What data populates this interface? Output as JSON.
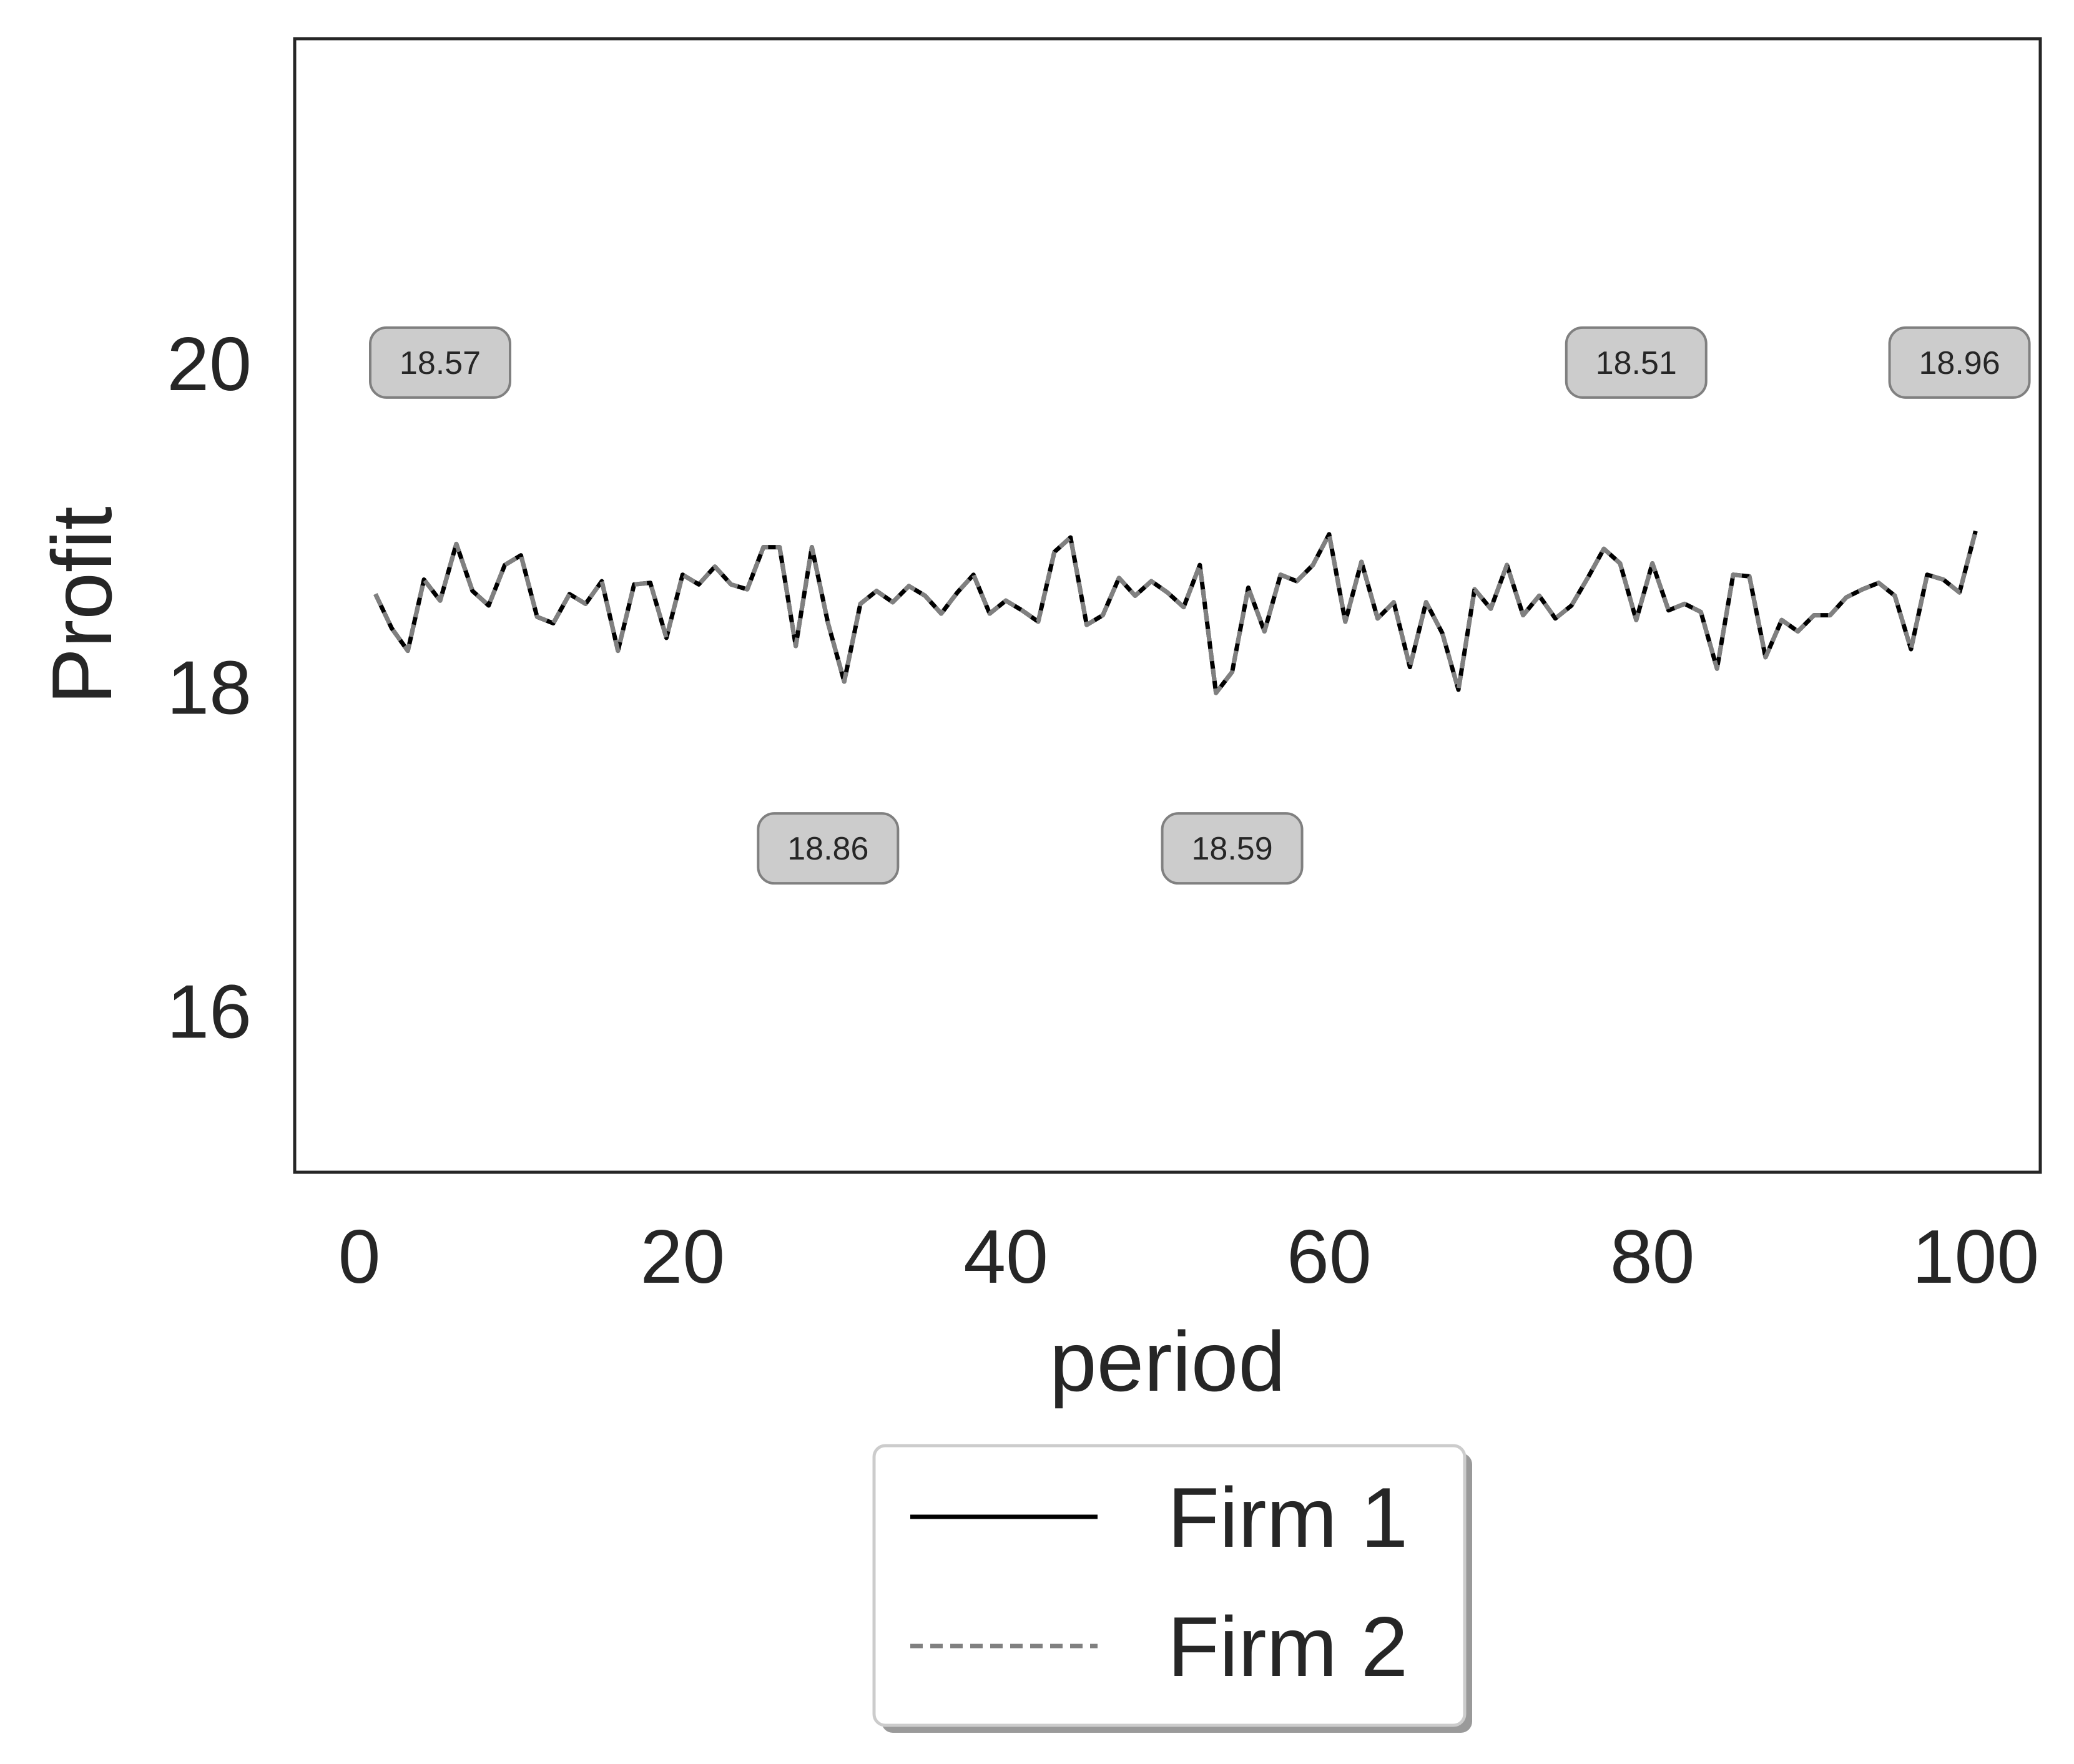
{
  "chart_data": {
    "type": "line",
    "xlabel": "period",
    "ylabel": "Profit",
    "xlim": [
      -4,
      104
    ],
    "ylim": [
      15,
      22
    ],
    "xticks": [
      0,
      20,
      40,
      60,
      80,
      100
    ],
    "yticks": [
      16,
      18,
      20
    ],
    "grid": false,
    "legend_position": "bottom-center",
    "series": [
      {
        "name": "Firm 1",
        "color": "#000000",
        "style": "solid",
        "x": [
          1,
          2,
          3,
          4,
          5,
          6,
          7,
          8,
          9,
          10,
          11,
          12,
          13,
          14,
          15,
          16,
          17,
          18,
          19,
          20,
          21,
          22,
          23,
          24,
          25,
          26,
          27,
          28,
          29,
          30,
          31,
          32,
          33,
          34,
          35,
          36,
          37,
          38,
          39,
          40,
          41,
          42,
          43,
          44,
          45,
          46,
          47,
          48,
          49,
          50,
          51,
          52,
          53,
          54,
          55,
          56,
          57,
          58,
          59,
          60,
          61,
          62,
          63,
          64,
          65,
          66,
          67,
          68,
          69,
          70,
          71,
          72,
          73,
          74,
          75,
          76,
          77,
          78,
          79,
          80,
          81,
          82,
          83,
          84,
          85,
          86,
          87,
          88,
          89,
          90,
          91,
          92,
          93,
          94,
          95,
          96,
          97,
          98,
          99,
          100
        ],
        "values": [
          18.57,
          18.36,
          18.22,
          18.66,
          18.53,
          18.88,
          18.59,
          18.5,
          18.75,
          18.81,
          18.43,
          18.39,
          18.57,
          18.51,
          18.65,
          18.22,
          18.63,
          18.64,
          18.3,
          18.69,
          18.63,
          18.74,
          18.63,
          18.6,
          18.86,
          18.86,
          18.25,
          18.86,
          18.39,
          18.03,
          18.51,
          18.59,
          18.52,
          18.62,
          18.56,
          18.45,
          18.58,
          18.69,
          18.45,
          18.53,
          18.47,
          18.4,
          18.83,
          18.92,
          18.38,
          18.44,
          18.67,
          18.56,
          18.65,
          18.58,
          18.49,
          18.75,
          17.96,
          18.09,
          18.61,
          18.34,
          18.69,
          18.65,
          18.75,
          18.94,
          18.4,
          18.77,
          18.42,
          18.52,
          18.12,
          18.52,
          18.33,
          17.98,
          18.6,
          18.48,
          18.75,
          18.44,
          18.56,
          18.42,
          18.5,
          18.67,
          18.85,
          18.76,
          18.41,
          18.76,
          18.47,
          18.51,
          18.46,
          18.11,
          18.69,
          18.68,
          18.18,
          18.41,
          18.34,
          18.44,
          18.44,
          18.55,
          18.6,
          18.64,
          18.56,
          18.23,
          18.69,
          18.66,
          18.58,
          18.96
        ]
      },
      {
        "name": "Firm 2",
        "color": "#808080",
        "style": "dashed",
        "x": [
          1,
          2,
          3,
          4,
          5,
          6,
          7,
          8,
          9,
          10,
          11,
          12,
          13,
          14,
          15,
          16,
          17,
          18,
          19,
          20,
          21,
          22,
          23,
          24,
          25,
          26,
          27,
          28,
          29,
          30,
          31,
          32,
          33,
          34,
          35,
          36,
          37,
          38,
          39,
          40,
          41,
          42,
          43,
          44,
          45,
          46,
          47,
          48,
          49,
          50,
          51,
          52,
          53,
          54,
          55,
          56,
          57,
          58,
          59,
          60,
          61,
          62,
          63,
          64,
          65,
          66,
          67,
          68,
          69,
          70,
          71,
          72,
          73,
          74,
          75,
          76,
          77,
          78,
          79,
          80,
          81,
          82,
          83,
          84,
          85,
          86,
          87,
          88,
          89,
          90,
          91,
          92,
          93,
          94,
          95,
          96,
          97,
          98,
          99,
          100
        ],
        "values": [
          18.57,
          18.36,
          18.22,
          18.66,
          18.53,
          18.88,
          18.59,
          18.5,
          18.75,
          18.81,
          18.43,
          18.39,
          18.57,
          18.51,
          18.65,
          18.22,
          18.63,
          18.64,
          18.3,
          18.69,
          18.63,
          18.74,
          18.63,
          18.6,
          18.86,
          18.86,
          18.25,
          18.86,
          18.39,
          18.03,
          18.51,
          18.59,
          18.52,
          18.62,
          18.56,
          18.45,
          18.58,
          18.69,
          18.45,
          18.53,
          18.47,
          18.4,
          18.83,
          18.92,
          18.38,
          18.44,
          18.67,
          18.56,
          18.65,
          18.58,
          18.49,
          18.75,
          17.96,
          18.09,
          18.61,
          18.34,
          18.69,
          18.65,
          18.75,
          18.94,
          18.4,
          18.77,
          18.42,
          18.52,
          18.12,
          18.52,
          18.33,
          17.98,
          18.6,
          18.48,
          18.75,
          18.44,
          18.56,
          18.42,
          18.5,
          18.67,
          18.85,
          18.76,
          18.41,
          18.76,
          18.47,
          18.51,
          18.46,
          18.11,
          18.69,
          18.68,
          18.18,
          18.41,
          18.34,
          18.44,
          18.44,
          18.55,
          18.6,
          18.64,
          18.56,
          18.23,
          18.69,
          18.66,
          18.58,
          18.96
        ]
      }
    ],
    "annotations": [
      {
        "text": "18.57",
        "x": 5,
        "y": 20
      },
      {
        "text": "18.86",
        "x": 29,
        "y": 17
      },
      {
        "text": "18.59",
        "x": 54,
        "y": 17
      },
      {
        "text": "18.51",
        "x": 79,
        "y": 20
      },
      {
        "text": "18.96",
        "x": 99,
        "y": 20
      }
    ]
  }
}
